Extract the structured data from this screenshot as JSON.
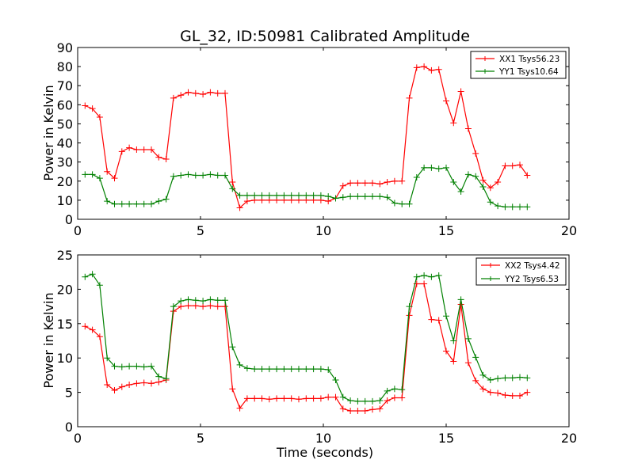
{
  "chart_data": [
    {
      "type": "line",
      "title": "GL_32, ID:50981 Calibrated Amplitude",
      "xlabel": "",
      "ylabel": "Power in Kelvin",
      "xlim": [
        0,
        20
      ],
      "ylim": [
        0,
        90
      ],
      "xticks": [
        0,
        5,
        10,
        15,
        20
      ],
      "yticks": [
        0,
        10,
        20,
        30,
        40,
        50,
        60,
        70,
        80,
        90
      ],
      "grid": false,
      "legend_position": "top-right",
      "series": [
        {
          "name": "XX1 Tsys56.23",
          "color": "#ff0000",
          "marker": "plus",
          "x": [
            0.3,
            0.6,
            0.9,
            1.2,
            1.5,
            1.8,
            2.1,
            2.4,
            2.7,
            3.0,
            3.3,
            3.6,
            3.9,
            4.2,
            4.5,
            4.8,
            5.1,
            5.4,
            5.7,
            6.0,
            6.3,
            6.6,
            6.9,
            7.2,
            7.5,
            7.8,
            8.1,
            8.4,
            8.7,
            9.0,
            9.3,
            9.6,
            9.9,
            10.2,
            10.5,
            10.8,
            11.1,
            11.4,
            11.7,
            12.0,
            12.3,
            12.6,
            12.9,
            13.2,
            13.5,
            13.8,
            14.1,
            14.4,
            14.7,
            15.0,
            15.3,
            15.6,
            15.9,
            16.2,
            16.5,
            16.8,
            17.1,
            17.4,
            17.7,
            18.0,
            18.3
          ],
          "y": [
            59.5,
            58,
            53.5,
            25,
            21.5,
            35.5,
            37.5,
            36.5,
            36.5,
            36.5,
            32.5,
            31.5,
            63.5,
            65,
            66.5,
            66,
            65.5,
            66.5,
            66,
            66,
            19.5,
            6,
            9.5,
            10,
            10,
            10,
            10,
            10,
            10,
            10,
            10,
            10,
            10,
            9.5,
            11,
            17.5,
            19,
            19,
            19,
            19,
            18.5,
            19.5,
            20,
            20,
            63.5,
            79.5,
            80,
            78,
            78.5,
            62,
            50.5,
            67,
            47.5,
            34.5,
            20.5,
            16.5,
            19.5,
            28,
            28,
            28.5,
            23
          ]
        },
        {
          "name": "YY1 Tsys10.64",
          "color": "#008000",
          "marker": "plus",
          "x": [
            0.3,
            0.6,
            0.9,
            1.2,
            1.5,
            1.8,
            2.1,
            2.4,
            2.7,
            3.0,
            3.3,
            3.6,
            3.9,
            4.2,
            4.5,
            4.8,
            5.1,
            5.4,
            5.7,
            6.0,
            6.3,
            6.6,
            6.9,
            7.2,
            7.5,
            7.8,
            8.1,
            8.4,
            8.7,
            9.0,
            9.3,
            9.6,
            9.9,
            10.2,
            10.5,
            10.8,
            11.1,
            11.4,
            11.7,
            12.0,
            12.3,
            12.6,
            12.9,
            13.2,
            13.5,
            13.8,
            14.1,
            14.4,
            14.7,
            15.0,
            15.3,
            15.6,
            15.9,
            16.2,
            16.5,
            16.8,
            17.1,
            17.4,
            17.7,
            18.0,
            18.3
          ],
          "y": [
            23.5,
            23.5,
            21.5,
            9.5,
            8,
            8,
            8,
            8,
            8,
            8,
            9.5,
            10.5,
            22.5,
            23,
            23.5,
            23,
            23,
            23.5,
            23,
            23,
            16,
            12.5,
            12.5,
            12.5,
            12.5,
            12.5,
            12.5,
            12.5,
            12.5,
            12.5,
            12.5,
            12.5,
            12.5,
            12,
            11,
            11.5,
            12,
            12,
            12,
            12,
            12,
            11.5,
            8.5,
            8,
            8,
            22,
            27,
            27,
            26.5,
            27,
            19.5,
            14.5,
            23.5,
            22.5,
            17,
            9,
            7,
            6.5,
            6.5,
            6.5,
            6.5
          ]
        }
      ]
    },
    {
      "type": "line",
      "title": "",
      "xlabel": "Time (seconds)",
      "ylabel": "Power in Kelvin",
      "xlim": [
        0,
        20
      ],
      "ylim": [
        0,
        25
      ],
      "xticks": [
        0,
        5,
        10,
        15,
        20
      ],
      "yticks": [
        0,
        5,
        10,
        15,
        20,
        25
      ],
      "grid": false,
      "legend_position": "top-right",
      "series": [
        {
          "name": "XX2 Tsys4.42",
          "color": "#ff0000",
          "marker": "plus",
          "x": [
            0.3,
            0.6,
            0.9,
            1.2,
            1.5,
            1.8,
            2.1,
            2.4,
            2.7,
            3.0,
            3.3,
            3.6,
            3.9,
            4.2,
            4.5,
            4.8,
            5.1,
            5.4,
            5.7,
            6.0,
            6.3,
            6.6,
            6.9,
            7.2,
            7.5,
            7.8,
            8.1,
            8.4,
            8.7,
            9.0,
            9.3,
            9.6,
            9.9,
            10.2,
            10.5,
            10.8,
            11.1,
            11.4,
            11.7,
            12.0,
            12.3,
            12.6,
            12.9,
            13.2,
            13.5,
            13.8,
            14.1,
            14.4,
            14.7,
            15.0,
            15.3,
            15.6,
            15.9,
            16.2,
            16.5,
            16.8,
            17.1,
            17.4,
            17.7,
            18.0,
            18.3
          ],
          "y": [
            14.6,
            14.1,
            13.1,
            6.1,
            5.3,
            5.8,
            6.1,
            6.3,
            6.4,
            6.3,
            6.5,
            6.8,
            16.8,
            17.5,
            17.6,
            17.6,
            17.5,
            17.6,
            17.5,
            17.5,
            5.5,
            2.7,
            4.1,
            4.1,
            4.1,
            4.0,
            4.1,
            4.1,
            4.1,
            4.0,
            4.1,
            4.1,
            4.1,
            4.3,
            4.3,
            2.6,
            2.3,
            2.3,
            2.3,
            2.5,
            2.6,
            3.8,
            4.2,
            4.2,
            16.2,
            20.8,
            20.8,
            15.6,
            15.5,
            11.0,
            9.5,
            17.8,
            9.3,
            6.7,
            5.5,
            5.0,
            4.9,
            4.6,
            4.5,
            4.5,
            5.0
          ]
        },
        {
          "name": "YY2 Tsys6.53",
          "color": "#008000",
          "marker": "plus",
          "x": [
            0.3,
            0.6,
            0.9,
            1.2,
            1.5,
            1.8,
            2.1,
            2.4,
            2.7,
            3.0,
            3.3,
            3.6,
            3.9,
            4.2,
            4.5,
            4.8,
            5.1,
            5.4,
            5.7,
            6.0,
            6.3,
            6.6,
            6.9,
            7.2,
            7.5,
            7.8,
            8.1,
            8.4,
            8.7,
            9.0,
            9.3,
            9.6,
            9.9,
            10.2,
            10.5,
            10.8,
            11.1,
            11.4,
            11.7,
            12.0,
            12.3,
            12.6,
            12.9,
            13.2,
            13.5,
            13.8,
            14.1,
            14.4,
            14.7,
            15.0,
            15.3,
            15.6,
            15.9,
            16.2,
            16.5,
            16.8,
            17.1,
            17.4,
            17.7,
            18.0,
            18.3
          ],
          "y": [
            21.8,
            22.2,
            20.6,
            10.0,
            8.8,
            8.7,
            8.8,
            8.8,
            8.7,
            8.8,
            7.3,
            7.0,
            17.5,
            18.3,
            18.5,
            18.4,
            18.3,
            18.5,
            18.4,
            18.4,
            11.6,
            9.0,
            8.5,
            8.4,
            8.4,
            8.4,
            8.4,
            8.4,
            8.4,
            8.4,
            8.4,
            8.4,
            8.4,
            8.3,
            6.8,
            4.3,
            3.8,
            3.7,
            3.7,
            3.7,
            3.8,
            5.2,
            5.5,
            5.4,
            17.5,
            21.8,
            22.0,
            21.8,
            22.0,
            16.1,
            12.5,
            18.5,
            12.8,
            10.1,
            7.5,
            6.8,
            7.0,
            7.1,
            7.1,
            7.2,
            7.1
          ]
        }
      ]
    }
  ]
}
